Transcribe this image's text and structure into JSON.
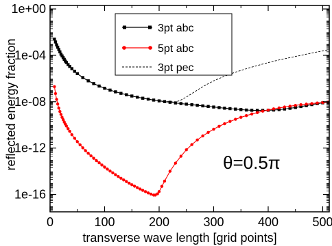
{
  "chart_data": {
    "type": "line",
    "xlabel": "transverse wave length [grid points]",
    "ylabel": "reflected energy fraction",
    "xlim": [
      0,
      512
    ],
    "ylim_log10": [
      -17.5,
      0.3
    ],
    "yscale": "log",
    "x_ticks": [
      0,
      100,
      200,
      300,
      400,
      500
    ],
    "x_tick_labels": [
      "0",
      "100",
      "200",
      "300",
      "400",
      "500"
    ],
    "y_ticks_log10": [
      0,
      -4,
      -8,
      -12,
      -16
    ],
    "y_tick_labels": [
      "1e+00",
      "1e-04",
      "1e-08",
      "1e-12",
      "1e-16"
    ],
    "annotation": "θ=0.5π",
    "legend_position": "top-center",
    "grid": false,
    "series": [
      {
        "name": "3pt abc",
        "color": "#000000",
        "line_style": "solid",
        "marker": "square",
        "x": [
          8,
          10,
          12,
          14,
          16,
          18,
          20,
          22,
          24,
          26,
          28,
          30,
          33,
          36,
          40,
          45,
          50,
          60,
          70,
          80,
          90,
          100,
          110,
          120,
          130,
          140,
          150,
          160,
          170,
          180,
          190,
          200,
          210,
          220,
          230,
          240,
          250,
          260,
          270,
          280,
          290,
          300,
          310,
          320,
          330,
          340,
          350,
          360,
          370,
          380,
          390,
          400,
          410,
          420,
          430,
          440,
          450,
          460,
          470,
          480,
          490,
          500,
          510
        ],
        "log10_y": [
          -2.6,
          -2.85,
          -3.1,
          -3.3,
          -3.5,
          -3.7,
          -3.9,
          -4.05,
          -4.2,
          -4.35,
          -4.5,
          -4.62,
          -4.8,
          -4.96,
          -5.15,
          -5.38,
          -5.58,
          -5.92,
          -6.2,
          -6.44,
          -6.65,
          -6.84,
          -7.0,
          -7.15,
          -7.28,
          -7.4,
          -7.51,
          -7.61,
          -7.7,
          -7.78,
          -7.86,
          -7.93,
          -7.99,
          -8.05,
          -8.11,
          -8.16,
          -8.21,
          -8.26,
          -8.31,
          -8.36,
          -8.41,
          -8.46,
          -8.51,
          -8.56,
          -8.6,
          -8.64,
          -8.68,
          -8.72,
          -8.74,
          -8.75,
          -8.75,
          -8.74,
          -8.72,
          -8.68,
          -8.63,
          -8.57,
          -8.5,
          -8.42,
          -8.34,
          -8.25,
          -8.17,
          -8.1,
          -8.05
        ]
      },
      {
        "name": "5pt abc",
        "color": "#ff0000",
        "line_style": "solid",
        "marker": "circle",
        "x": [
          8,
          10,
          12,
          14,
          16,
          18,
          20,
          22,
          24,
          26,
          28,
          30,
          33,
          36,
          40,
          45,
          50,
          55,
          60,
          65,
          70,
          75,
          80,
          85,
          90,
          95,
          100,
          105,
          110,
          115,
          120,
          125,
          130,
          135,
          140,
          145,
          150,
          155,
          160,
          165,
          170,
          175,
          180,
          185,
          190,
          193,
          197,
          200,
          205,
          210,
          220,
          230,
          240,
          250,
          260,
          270,
          280,
          290,
          300,
          310,
          320,
          330,
          340,
          350,
          360,
          370,
          380,
          390,
          400,
          410,
          420,
          430,
          440,
          450,
          460,
          470,
          480,
          490,
          500,
          510
        ],
        "log10_y": [
          -6.7,
          -7.3,
          -7.8,
          -8.2,
          -8.55,
          -8.85,
          -9.1,
          -9.35,
          -9.55,
          -9.75,
          -9.93,
          -10.1,
          -10.33,
          -10.55,
          -10.85,
          -11.15,
          -11.45,
          -11.72,
          -11.98,
          -12.22,
          -12.45,
          -12.67,
          -12.88,
          -13.08,
          -13.27,
          -13.46,
          -13.64,
          -13.81,
          -13.98,
          -14.14,
          -14.3,
          -14.45,
          -14.6,
          -14.75,
          -14.89,
          -15.03,
          -15.16,
          -15.29,
          -15.41,
          -15.53,
          -15.65,
          -15.76,
          -15.87,
          -15.97,
          -16.05,
          -16.05,
          -15.95,
          -15.75,
          -15.3,
          -14.85,
          -14.0,
          -13.3,
          -12.7,
          -12.15,
          -11.7,
          -11.3,
          -10.95,
          -10.65,
          -10.37,
          -10.12,
          -9.9,
          -9.7,
          -9.52,
          -9.35,
          -9.2,
          -9.06,
          -8.94,
          -8.82,
          -8.72,
          -8.62,
          -8.54,
          -8.46,
          -8.39,
          -8.32,
          -8.26,
          -8.21,
          -8.16,
          -8.11,
          -8.07,
          -8.04
        ]
      },
      {
        "name": "3pt pec",
        "color": "#000000",
        "line_style": "dashed",
        "marker": "none",
        "x": [
          8,
          12,
          16,
          20,
          26,
          33,
          40,
          50,
          60,
          70,
          80,
          90,
          100,
          110,
          120,
          130,
          140,
          150,
          160,
          170,
          180,
          190,
          200,
          210,
          220,
          230,
          235,
          240,
          250,
          260,
          270,
          280,
          290,
          300,
          320,
          340,
          360,
          380,
          400,
          420,
          440,
          460,
          480,
          500,
          510
        ],
        "log10_y": [
          -2.6,
          -3.1,
          -3.5,
          -3.9,
          -4.35,
          -4.8,
          -5.15,
          -5.58,
          -5.92,
          -6.2,
          -6.44,
          -6.65,
          -6.84,
          -7.0,
          -7.15,
          -7.28,
          -7.4,
          -7.51,
          -7.61,
          -7.7,
          -7.78,
          -7.86,
          -7.92,
          -7.97,
          -8.0,
          -8.0,
          -7.95,
          -7.85,
          -7.6,
          -7.3,
          -7.0,
          -6.7,
          -6.45,
          -6.2,
          -5.8,
          -5.45,
          -5.15,
          -4.88,
          -4.63,
          -4.4,
          -4.2,
          -4.0,
          -3.8,
          -3.62,
          -3.55
        ]
      }
    ]
  }
}
